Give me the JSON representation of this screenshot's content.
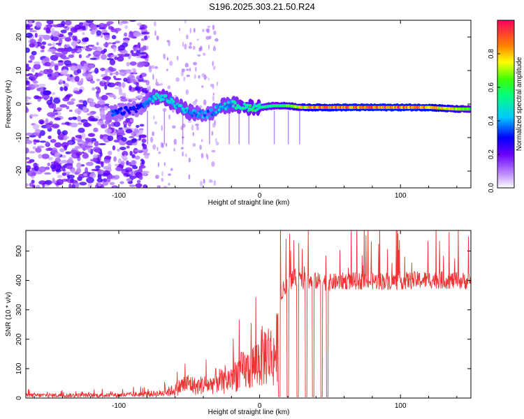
{
  "title": "S196.2025.303.21.50.R24",
  "chart_data": [
    {
      "type": "heatmap",
      "xlabel": "Height of straight line (km)",
      "ylabel": "Frequency (Hz)",
      "xlim": [
        -166,
        150
      ],
      "ylim": [
        -25,
        25
      ],
      "xticks": [
        -100,
        0,
        100
      ],
      "yticks": [
        -20,
        -10,
        0,
        10,
        20
      ],
      "colorbar": {
        "label": "Normalized spectral amplitude",
        "ticks": [
          0.0,
          0.2,
          0.4,
          0.6,
          0.8
        ],
        "tick_labels": [
          "0.0",
          "0.2",
          "0.4",
          "0.6",
          "0.8"
        ],
        "range": [
          0,
          1
        ],
        "colormap": "rainbow"
      },
      "ridge": {
        "description": "spectral peak track",
        "x": [
          -105,
          -95,
          -85,
          -75,
          -68,
          -60,
          -52,
          -44,
          -36,
          -28,
          -20,
          -10,
          0,
          10,
          20,
          30,
          40,
          60,
          80,
          100,
          120,
          140,
          150
        ],
        "freq": [
          -3,
          -2,
          -1,
          2,
          2,
          0,
          -2,
          -3,
          -3,
          -1,
          0,
          -1,
          -1,
          -0.5,
          -0.5,
          -1,
          -1,
          -1,
          -1,
          -1,
          -1,
          -1.5,
          -1.5
        ],
        "amp": [
          0.35,
          0.3,
          0.3,
          0.45,
          0.5,
          0.45,
          0.45,
          0.4,
          0.4,
          0.45,
          0.45,
          0.55,
          0.55,
          0.55,
          0.65,
          0.75,
          0.85,
          0.9,
          0.9,
          0.9,
          0.9,
          0.75,
          0.6
        ]
      }
    },
    {
      "type": "line",
      "xlabel": "Height of straight line (km)",
      "ylabel": "SNR (10 * v/v)",
      "xlim": [
        -166,
        150
      ],
      "ylim": [
        0,
        570
      ],
      "xticks": [
        -100,
        0,
        100
      ],
      "yticks": [
        0,
        100,
        200,
        300,
        400,
        500
      ],
      "series": [
        {
          "name": "SNR",
          "color": "#ee3333",
          "envelope_x": [
            -166,
            -140,
            -110,
            -90,
            -70,
            -60,
            -55,
            -50,
            -45,
            -40,
            -35,
            -30,
            -25,
            -20,
            -15,
            -10,
            -5,
            0,
            5,
            10,
            15,
            18,
            20,
            25,
            30,
            40,
            50,
            60,
            80,
            100,
            120,
            150
          ],
          "envelope_y": [
            15,
            15,
            15,
            18,
            25,
            45,
            70,
            80,
            60,
            75,
            70,
            100,
            80,
            115,
            140,
            150,
            170,
            210,
            250,
            220,
            330,
            380,
            395,
            410,
            400,
            400,
            395,
            400,
            400,
            400,
            405,
            400
          ]
        }
      ]
    }
  ]
}
